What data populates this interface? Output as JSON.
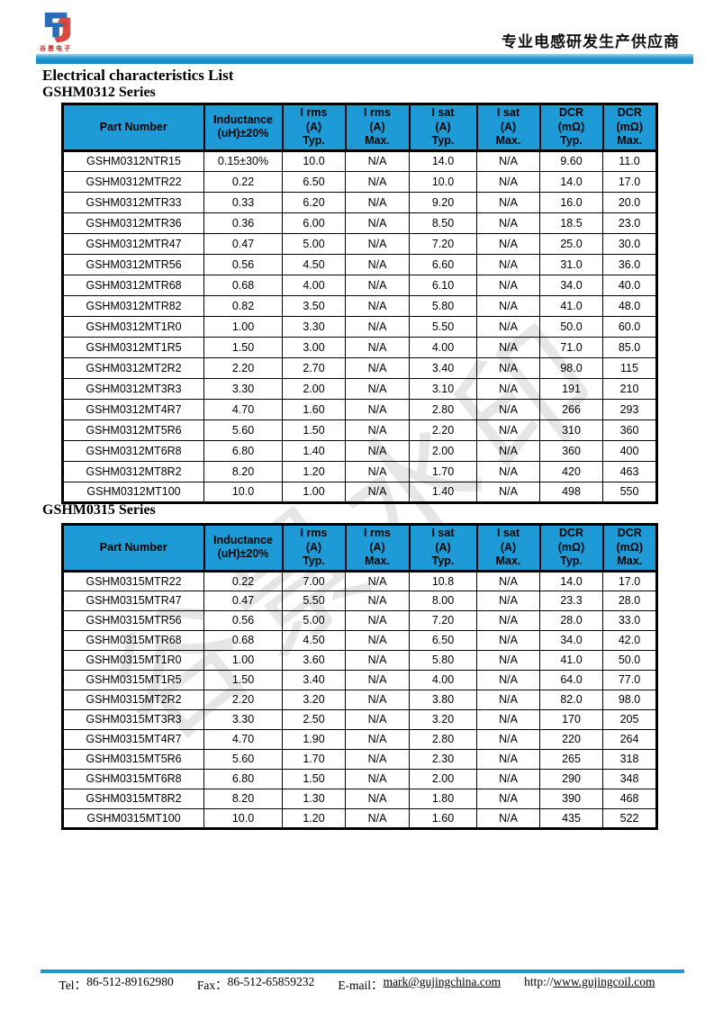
{
  "header": {
    "logo_caption": "谷景电子",
    "tagline": "专业电感研发生产供应商"
  },
  "title": "Electrical characteristics List",
  "watermark": "谷景水印",
  "colors": {
    "accent_blue": "#1B97D4",
    "table_header_bg": "#1E9AD6",
    "logo_blue": "#2B6CB8",
    "logo_red": "#D43C32"
  },
  "tables": [
    {
      "series": "GSHM0312 Series",
      "columns": [
        "Part Number",
        "Inductance\n(uH)±20%",
        "I rms\n(A)\nTyp.",
        "I rms\n(A)\nMax.",
        "I sat\n(A)\nTyp.",
        "I sat\n(A)\nMax.",
        "DCR\n(mΩ)\nTyp.",
        "DCR\n(mΩ)\nMax."
      ],
      "rows": [
        [
          "GSHM0312NTR15",
          "0.15±30%",
          "10.0",
          "N/A",
          "14.0",
          "N/A",
          "9.60",
          "11.0"
        ],
        [
          "GSHM0312MTR22",
          "0.22",
          "6.50",
          "N/A",
          "10.0",
          "N/A",
          "14.0",
          "17.0"
        ],
        [
          "GSHM0312MTR33",
          "0.33",
          "6.20",
          "N/A",
          "9.20",
          "N/A",
          "16.0",
          "20.0"
        ],
        [
          "GSHM0312MTR36",
          "0.36",
          "6.00",
          "N/A",
          "8.50",
          "N/A",
          "18.5",
          "23.0"
        ],
        [
          "GSHM0312MTR47",
          "0.47",
          "5.00",
          "N/A",
          "7.20",
          "N/A",
          "25.0",
          "30.0"
        ],
        [
          "GSHM0312MTR56",
          "0.56",
          "4.50",
          "N/A",
          "6.60",
          "N/A",
          "31.0",
          "36.0"
        ],
        [
          "GSHM0312MTR68",
          "0.68",
          "4.00",
          "N/A",
          "6.10",
          "N/A",
          "34.0",
          "40.0"
        ],
        [
          "GSHM0312MTR82",
          "0.82",
          "3.50",
          "N/A",
          "5.80",
          "N/A",
          "41.0",
          "48.0"
        ],
        [
          "GSHM0312MT1R0",
          "1.00",
          "3.30",
          "N/A",
          "5.50",
          "N/A",
          "50.0",
          "60.0"
        ],
        [
          "GSHM0312MT1R5",
          "1.50",
          "3.00",
          "N/A",
          "4.00",
          "N/A",
          "71.0",
          "85.0"
        ],
        [
          "GSHM0312MT2R2",
          "2.20",
          "2.70",
          "N/A",
          "3.40",
          "N/A",
          "98.0",
          "115"
        ],
        [
          "GSHM0312MT3R3",
          "3.30",
          "2.00",
          "N/A",
          "3.10",
          "N/A",
          "191",
          "210"
        ],
        [
          "GSHM0312MT4R7",
          "4.70",
          "1.60",
          "N/A",
          "2.80",
          "N/A",
          "266",
          "293"
        ],
        [
          "GSHM0312MT5R6",
          "5.60",
          "1.50",
          "N/A",
          "2.20",
          "N/A",
          "310",
          "360"
        ],
        [
          "GSHM0312MT6R8",
          "6.80",
          "1.40",
          "N/A",
          "2.00",
          "N/A",
          "360",
          "400"
        ],
        [
          "GSHM0312MT8R2",
          "8.20",
          "1.20",
          "N/A",
          "1.70",
          "N/A",
          "420",
          "463"
        ],
        [
          "GSHM0312MT100",
          "10.0",
          "1.00",
          "N/A",
          "1.40",
          "N/A",
          "498",
          "550"
        ]
      ]
    },
    {
      "series": "GSHM0315 Series",
      "columns": [
        "Part Number",
        "Inductance\n(uH)±20%",
        "I rms\n(A)\nTyp.",
        "I rms\n(A)\nMax.",
        "I sat\n(A)\nTyp.",
        "I sat\n(A)\nMax.",
        "DCR\n(mΩ)\nTyp.",
        "DCR\n(mΩ)\nMax."
      ],
      "rows": [
        [
          "GSHM0315MTR22",
          "0.22",
          "7.00",
          "N/A",
          "10.8",
          "N/A",
          "14.0",
          "17.0"
        ],
        [
          "GSHM0315MTR47",
          "0.47",
          "5.50",
          "N/A",
          "8.00",
          "N/A",
          "23.3",
          "28.0"
        ],
        [
          "GSHM0315MTR56",
          "0.56",
          "5.00",
          "N/A",
          "7.20",
          "N/A",
          "28.0",
          "33.0"
        ],
        [
          "GSHM0315MTR68",
          "0.68",
          "4.50",
          "N/A",
          "6.50",
          "N/A",
          "34.0",
          "42.0"
        ],
        [
          "GSHM0315MT1R0",
          "1.00",
          "3.60",
          "N/A",
          "5.80",
          "N/A",
          "41.0",
          "50.0"
        ],
        [
          "GSHM0315MT1R5",
          "1.50",
          "3.40",
          "N/A",
          "4.00",
          "N/A",
          "64.0",
          "77.0"
        ],
        [
          "GSHM0315MT2R2",
          "2.20",
          "3.20",
          "N/A",
          "3.80",
          "N/A",
          "82.0",
          "98.0"
        ],
        [
          "GSHM0315MT3R3",
          "3.30",
          "2.50",
          "N/A",
          "3.20",
          "N/A",
          "170",
          "205"
        ],
        [
          "GSHM0315MT4R7",
          "4.70",
          "1.90",
          "N/A",
          "2.80",
          "N/A",
          "220",
          "264"
        ],
        [
          "GSHM0315MT5R6",
          "5.60",
          "1.70",
          "N/A",
          "2.30",
          "N/A",
          "265",
          "318"
        ],
        [
          "GSHM0315MT6R8",
          "6.80",
          "1.50",
          "N/A",
          "2.00",
          "N/A",
          "290",
          "348"
        ],
        [
          "GSHM0315MT8R2",
          "8.20",
          "1.30",
          "N/A",
          "1.80",
          "N/A",
          "390",
          "468"
        ],
        [
          "GSHM0315MT100",
          "10.0",
          "1.20",
          "N/A",
          "1.60",
          "N/A",
          "435",
          "522"
        ]
      ]
    }
  ],
  "footer": {
    "tel_label": "Tel：",
    "tel": "86-512-89162980",
    "fax_label": "Fax：",
    "fax": "86-512-65859232",
    "email_label": "E-mail：",
    "email": "mark@gujingchina.com",
    "url_prefix": "http://",
    "url": "www.gujingcoil.com"
  }
}
